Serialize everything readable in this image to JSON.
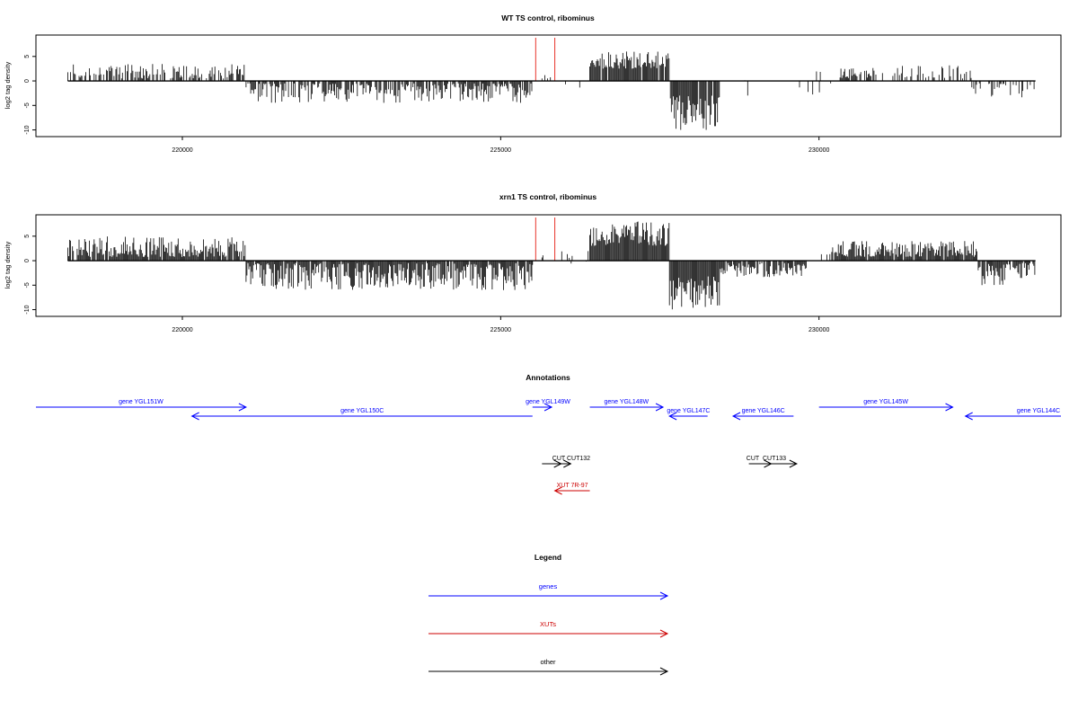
{
  "panels": [
    {
      "title": "WT TS control, ribominus",
      "ylabel": "log2 tag density"
    },
    {
      "title": "xrn1 TS control, ribominus",
      "ylabel": "log2 tag density"
    }
  ],
  "annotations_title": "Annotations",
  "legend_title": "Legend",
  "colors": {
    "gene": "#0000ff",
    "xut": "#cc0000",
    "other": "#000000",
    "highlight": "#e8332a",
    "bars": "#000000"
  },
  "chart_data": [
    {
      "type": "bar",
      "title": "WT TS control, ribominus",
      "xlabel": "",
      "ylabel": "log2 tag density",
      "xlim": [
        217700,
        233800
      ],
      "ylim": [
        -11,
        9
      ],
      "xticks": [
        220000,
        225000,
        230000
      ],
      "yticks": [
        5,
        0,
        -5,
        -10
      ],
      "highlight_lines_x": [
        225550,
        225850
      ],
      "signal_segments": [
        {
          "x_start": 218200,
          "x_end": 221000,
          "min": 0.5,
          "max": 3.5,
          "density": 0.55
        },
        {
          "x_start": 221000,
          "x_end": 225500,
          "min": -4.5,
          "max": -0.5,
          "density": 0.75
        },
        {
          "x_start": 225500,
          "x_end": 226400,
          "min": -1.5,
          "max": 1.2,
          "density": 0.12
        },
        {
          "x_start": 226400,
          "x_end": 227650,
          "min": 2.5,
          "max": 6.0,
          "density": 0.95
        },
        {
          "x_start": 227650,
          "x_end": 228450,
          "min": -10.0,
          "max": -3.0,
          "density": 0.95
        },
        {
          "x_start": 228450,
          "x_end": 230200,
          "min": -3.0,
          "max": 2.0,
          "density": 0.06
        },
        {
          "x_start": 230300,
          "x_end": 232400,
          "min": 0.5,
          "max": 3.2,
          "density": 0.45
        },
        {
          "x_start": 232400,
          "x_end": 233400,
          "min": -4.0,
          "max": -0.5,
          "density": 0.45
        }
      ]
    },
    {
      "type": "bar",
      "title": "xrn1 TS control, ribominus",
      "xlabel": "",
      "ylabel": "log2 tag density",
      "xlim": [
        217700,
        233800
      ],
      "ylim": [
        -11,
        9
      ],
      "xticks": [
        220000,
        225000,
        230000
      ],
      "yticks": [
        5,
        0,
        -5,
        -10
      ],
      "highlight_lines_x": [
        225550,
        225850
      ],
      "signal_segments": [
        {
          "x_start": 218200,
          "x_end": 221000,
          "min": 0.8,
          "max": 5.0,
          "density": 0.95
        },
        {
          "x_start": 221000,
          "x_end": 225500,
          "min": -6.0,
          "max": -0.5,
          "density": 0.95
        },
        {
          "x_start": 225500,
          "x_end": 226400,
          "min": -1.5,
          "max": 2.0,
          "density": 0.15
        },
        {
          "x_start": 226400,
          "x_end": 227650,
          "min": 3.0,
          "max": 8.0,
          "density": 1.0
        },
        {
          "x_start": 227650,
          "x_end": 228450,
          "min": -10.0,
          "max": -3.0,
          "density": 1.0
        },
        {
          "x_start": 228450,
          "x_end": 229800,
          "min": -3.5,
          "max": -0.5,
          "density": 0.9
        },
        {
          "x_start": 229800,
          "x_end": 230200,
          "min": -1.0,
          "max": 2.5,
          "density": 0.1
        },
        {
          "x_start": 230200,
          "x_end": 232500,
          "min": 0.8,
          "max": 4.0,
          "density": 0.95
        },
        {
          "x_start": 232500,
          "x_end": 233400,
          "min": -5.0,
          "max": -0.5,
          "density": 0.9
        }
      ]
    }
  ],
  "features": [
    {
      "label": "gene YGL151W",
      "type": "gene",
      "start": 217700,
      "end": 221000,
      "strand": "+",
      "row": 0
    },
    {
      "label": "gene YGL150C",
      "type": "gene",
      "start": 220150,
      "end": 225500,
      "strand": "-",
      "row": 1
    },
    {
      "label": "gene YGL149W",
      "type": "gene",
      "start": 225500,
      "end": 225800,
      "strand": "+",
      "row": 0
    },
    {
      "label": "gene YGL148W",
      "type": "gene",
      "start": 226400,
      "end": 227550,
      "strand": "+",
      "row": 0
    },
    {
      "label": "gene YGL147C",
      "type": "gene",
      "start": 227650,
      "end": 228250,
      "strand": "-",
      "row": 1
    },
    {
      "label": "gene YGL146C",
      "type": "gene",
      "start": 228650,
      "end": 229600,
      "strand": "-",
      "row": 1
    },
    {
      "label": "gene YGL145W",
      "type": "gene",
      "start": 230000,
      "end": 232100,
      "strand": "+",
      "row": 0
    },
    {
      "label": "gene YGL144C",
      "type": "gene",
      "start": 232300,
      "end": 233800,
      "strand": "-",
      "row": 1
    },
    {
      "label": "CUT",
      "type": "other",
      "start": 225650,
      "end": 225950,
      "strand": "+",
      "row": 2
    },
    {
      "label": "CUT132",
      "type": "other",
      "start": 225650,
      "end": 226100,
      "strand": "+",
      "row": 2
    },
    {
      "label": "CUT",
      "type": "other",
      "start": 228900,
      "end": 229250,
      "strand": "+",
      "row": 2
    },
    {
      "label": "CUT133",
      "type": "other",
      "start": 228900,
      "end": 229650,
      "strand": "+",
      "row": 2
    },
    {
      "label": "XUT 7R-97",
      "type": "xut",
      "start": 225850,
      "end": 226400,
      "strand": "-",
      "row": 3
    }
  ],
  "legend": [
    {
      "label": "genes",
      "type": "gene"
    },
    {
      "label": "XUTs",
      "type": "xut"
    },
    {
      "label": "other",
      "type": "other"
    }
  ]
}
